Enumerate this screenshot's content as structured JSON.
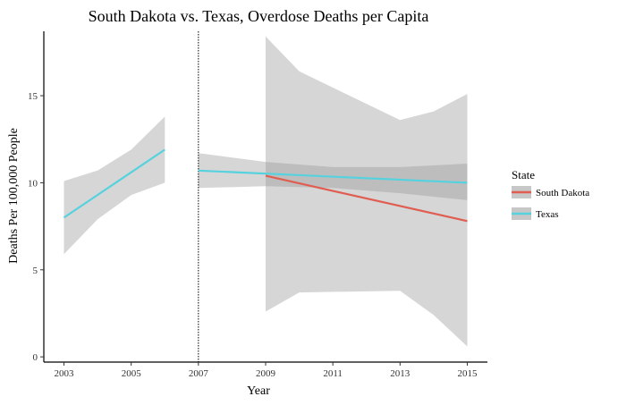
{
  "chart_data": {
    "type": "line",
    "title": "South Dakota vs. Texas, Overdose Deaths per Capita",
    "xlabel": "Year",
    "ylabel": "Deaths Per 100,000 People",
    "xlim": [
      2002.4,
      2015.6
    ],
    "ylim": [
      -0.3,
      18.7
    ],
    "x_ticks": [
      2003,
      2005,
      2007,
      2009,
      2011,
      2013,
      2015
    ],
    "y_ticks": [
      0,
      5,
      10,
      15
    ],
    "grid": false,
    "legend": {
      "title": "State",
      "position": "right"
    },
    "reference_line": {
      "x": 2007,
      "style": "dotted"
    },
    "series": [
      {
        "name": "South Dakota",
        "color": "#e05d52",
        "segments": [
          {
            "x": [
              2009,
              2015
            ],
            "y": [
              10.4,
              7.8
            ],
            "ribbon": {
              "x": [
                2009,
                2010,
                2013,
                2014,
                2015
              ],
              "upper": [
                18.4,
                16.4,
                13.6,
                14.1,
                15.1
              ],
              "lower": [
                2.6,
                3.7,
                3.8,
                2.4,
                0.6
              ]
            }
          }
        ]
      },
      {
        "name": "Texas",
        "color": "#56d2de",
        "segments": [
          {
            "x": [
              2003,
              2006
            ],
            "y": [
              8.0,
              11.9
            ],
            "ribbon": {
              "x": [
                2003,
                2004,
                2005,
                2006
              ],
              "upper": [
                10.1,
                10.7,
                11.9,
                13.8
              ],
              "lower": [
                5.9,
                7.9,
                9.3,
                10.0
              ]
            }
          },
          {
            "x": [
              2007,
              2015
            ],
            "y": [
              10.7,
              10.0
            ],
            "ribbon": {
              "x": [
                2007,
                2009,
                2011,
                2013,
                2015
              ],
              "upper": [
                11.7,
                11.2,
                10.9,
                10.9,
                11.1
              ],
              "lower": [
                9.7,
                9.8,
                9.7,
                9.4,
                9.0
              ]
            }
          }
        ]
      }
    ]
  }
}
